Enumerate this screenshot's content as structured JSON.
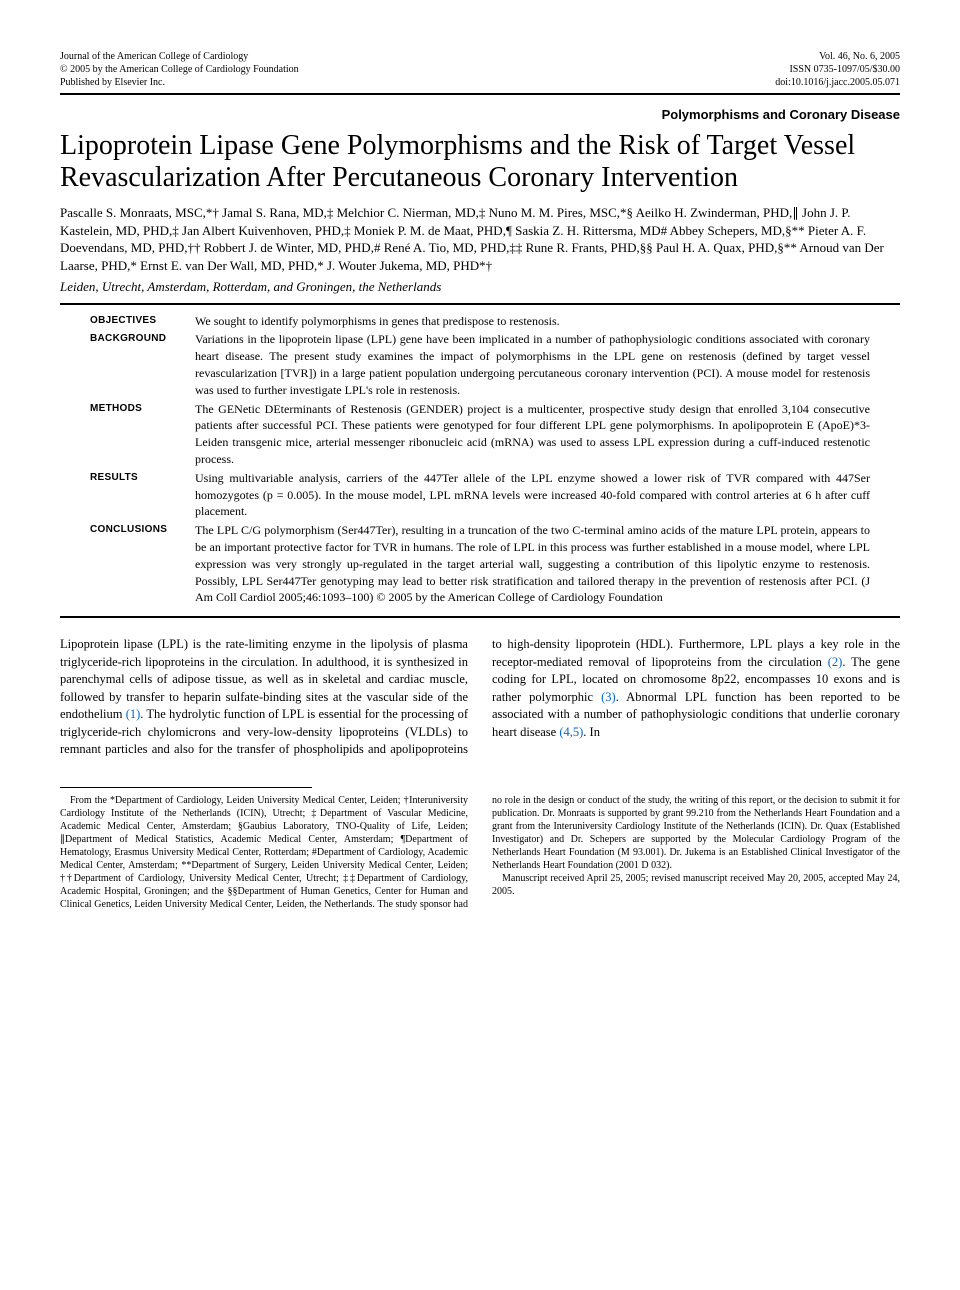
{
  "header": {
    "journal_line1": "Journal of the American College of Cardiology",
    "journal_line2": "© 2005 by the American College of Cardiology Foundation",
    "journal_line3": "Published by Elsevier Inc.",
    "vol": "Vol. 46, No. 6, 2005",
    "issn": "ISSN 0735-1097/05/$30.00",
    "doi": "doi:10.1016/j.jacc.2005.05.071"
  },
  "section_label": "Polymorphisms and Coronary Disease",
  "title": "Lipoprotein Lipase Gene Polymorphisms and the Risk of Target Vessel Revascularization After Percutaneous Coronary Intervention",
  "authors": "Pascalle S. Monraats, MSC,*† Jamal S. Rana, MD,‡ Melchior C. Nierman, MD,‡ Nuno M. M. Pires, MSC,*§ Aeilko H. Zwinderman, PHD,∥ John J. P. Kastelein, MD, PHD,‡ Jan Albert Kuivenhoven, PHD,‡ Moniek P. M. de Maat, PHD,¶ Saskia Z. H. Rittersma, MD# Abbey Schepers, MD,§** Pieter A. F. Doevendans, MD, PHD,†† Robbert J. de Winter, MD, PHD,# René A. Tio, MD, PHD,‡‡ Rune R. Frants, PHD,§§ Paul H. A. Quax, PHD,§** Arnoud van Der Laarse, PHD,* Ernst E. van Der Wall, MD, PHD,* J. Wouter Jukema, MD, PHD*†",
  "affiliation": "Leiden, Utrecht, Amsterdam, Rotterdam, and Groningen, the Netherlands",
  "abstract": {
    "objectives": {
      "label": "OBJECTIVES",
      "text": "We sought to identify polymorphisms in genes that predispose to restenosis."
    },
    "background": {
      "label": "BACKGROUND",
      "text": "Variations in the lipoprotein lipase (LPL) gene have been implicated in a number of pathophysiologic conditions associated with coronary heart disease. The present study examines the impact of polymorphisms in the LPL gene on restenosis (defined by target vessel revascularization [TVR]) in a large patient population undergoing percutaneous coronary intervention (PCI). A mouse model for restenosis was used to further investigate LPL's role in restenosis."
    },
    "methods": {
      "label": "METHODS",
      "text": "The GENetic DEterminants of Restenosis (GENDER) project is a multicenter, prospective study design that enrolled 3,104 consecutive patients after successful PCI. These patients were genotyped for four different LPL gene polymorphisms. In apolipoprotein E (ApoE)*3-Leiden transgenic mice, arterial messenger ribonucleic acid (mRNA) was used to assess LPL expression during a cuff-induced restenotic process."
    },
    "results": {
      "label": "RESULTS",
      "text": "Using multivariable analysis, carriers of the 447Ter allele of the LPL enzyme showed a lower risk of TVR compared with 447Ser homozygotes (p = 0.005). In the mouse model, LPL mRNA levels were increased 40-fold compared with control arteries at 6 h after cuff placement."
    },
    "conclusions": {
      "label": "CONCLUSIONS",
      "text": "The LPL C/G polymorphism (Ser447Ter), resulting in a truncation of the two C-terminal amino acids of the mature LPL protein, appears to be an important protective factor for TVR in humans. The role of LPL in this process was further established in a mouse model, where LPL expression was very strongly up-regulated in the target arterial wall, suggesting a contribution of this lipolytic enzyme to restenosis. Possibly, LPL Ser447Ter genotyping may lead to better risk stratification and tailored therapy in the prevention of restenosis after PCI.   (J Am Coll Cardiol 2005;46:1093–100) © 2005 by the American College of Cardiology Foundation"
    }
  },
  "body": {
    "para1_a": "Lipoprotein lipase (LPL) is the rate-limiting enzyme in the lipolysis of plasma triglyceride-rich lipoproteins in the circulation. In adulthood, it is synthesized in parenchymal cells of adipose tissue, as well as in skeletal and cardiac muscle, followed by transfer to heparin sulfate-binding sites at the vascular side of the endothelium ",
    "ref1": "(1)",
    "para1_b": ". The hydrolytic function of LPL is essential for the processing of triglyceride-rich chylomicrons and very-low-density lipoproteins (VLDLs) to remnant particles and also for the transfer of phospholipids and apolipoproteins to high-density lipoprotein (HDL). Furthermore, LPL plays a key role in the receptor-mediated removal of lipoproteins from the circulation ",
    "ref2": "(2)",
    "para1_c": ". The gene coding for LPL, located on chromosome 8p22, encompasses 10 exons and is rather polymorphic ",
    "ref3": "(3)",
    "para1_d": ". Abnormal LPL function has been reported to be associated with a number of pathophysiologic conditions that underlie coronary heart disease ",
    "ref45": "(4,5)",
    "para1_e": ". In"
  },
  "footnotes": {
    "p1": "From the *Department of Cardiology, Leiden University Medical Center, Leiden; †Interuniversity Cardiology Institute of the Netherlands (ICIN), Utrecht; ‡Department of Vascular Medicine, Academic Medical Center, Amsterdam; §Gaubius Laboratory, TNO-Quality of Life, Leiden; ∥Department of Medical Statistics, Academic Medical Center, Amsterdam; ¶Department of Hematology, Erasmus University Medical Center, Rotterdam; #Department of Cardiology, Academic Medical Center, Amsterdam; **Department of Surgery, Leiden University Medical Center, Leiden; ††Department of Cardiology, University Medical Center, Utrecht; ‡‡Department of Cardiology, Academic Hospital, Groningen; and the §§Department of Human Genetics, Center for Human and Clinical Genetics, Leiden University Medical Center, Leiden, the Netherlands. The study sponsor had no role in the design or conduct of the study, the writing of this report, or the decision to submit it for publication. Dr. Monraats is supported by grant 99.210 from the Netherlands Heart Foundation and a grant from the Interuniversity Cardiology Institute of the Netherlands (ICIN). Dr. Quax (Established Investigator) and Dr. Schepers are supported by the Molecular Cardiology Program of the Netherlands Heart Foundation (M 93.001). Dr. Jukema is an Established Clinical Investigator of the Netherlands Heart Foundation (2001 D 032).",
    "p2": "Manuscript received April 25, 2005; revised manuscript received May 20, 2005, accepted May 24, 2005."
  }
}
